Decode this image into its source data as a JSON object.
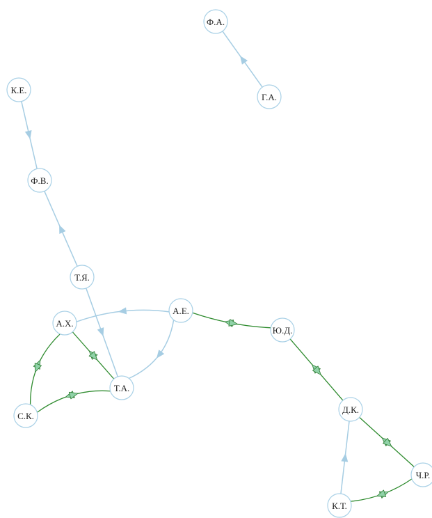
{
  "graph": {
    "nodes": [
      {
        "id": "fa",
        "label": "Ф.А."
      },
      {
        "id": "ga",
        "label": "Г.А."
      },
      {
        "id": "ke",
        "label": "К.Е."
      },
      {
        "id": "fv",
        "label": "Ф.В."
      },
      {
        "id": "tya",
        "label": "Т.Я."
      },
      {
        "id": "ae",
        "label": "А.Е."
      },
      {
        "id": "ax",
        "label": "А.Х."
      },
      {
        "id": "yud",
        "label": "Ю.Д."
      },
      {
        "id": "ta",
        "label": "Т.А."
      },
      {
        "id": "sk",
        "label": "С.К."
      },
      {
        "id": "dk",
        "label": "Д.К."
      },
      {
        "id": "chr",
        "label": "Ч.Р."
      },
      {
        "id": "kt",
        "label": "К.Т."
      }
    ],
    "edges": [
      {
        "from": "ga",
        "to": "fa",
        "type": "one-way"
      },
      {
        "from": "ke",
        "to": "fv",
        "type": "one-way"
      },
      {
        "from": "tya",
        "to": "fv",
        "type": "one-way"
      },
      {
        "from": "tya",
        "to": "ta",
        "type": "one-way"
      },
      {
        "from": "ae",
        "to": "ax",
        "type": "one-way"
      },
      {
        "from": "ae",
        "to": "ta",
        "type": "one-way"
      },
      {
        "from": "kt",
        "to": "dk",
        "type": "one-way"
      },
      {
        "from": "ae",
        "to": "yud",
        "type": "two-way"
      },
      {
        "from": "yud",
        "to": "dk",
        "type": "two-way"
      },
      {
        "from": "dk",
        "to": "chr",
        "type": "two-way"
      },
      {
        "from": "chr",
        "to": "kt",
        "type": "two-way"
      },
      {
        "from": "ax",
        "to": "ta",
        "type": "two-way"
      },
      {
        "from": "ax",
        "to": "sk",
        "type": "two-way"
      },
      {
        "from": "sk",
        "to": "ta",
        "type": "two-way"
      }
    ],
    "colors": {
      "one_way_edge": "#a6cde3",
      "two_way_edge": "#2e8b2e",
      "two_way_arrow_fill": "#90d2a8",
      "node_stroke": "#a8d0e6",
      "node_fill": "#ffffff"
    }
  }
}
